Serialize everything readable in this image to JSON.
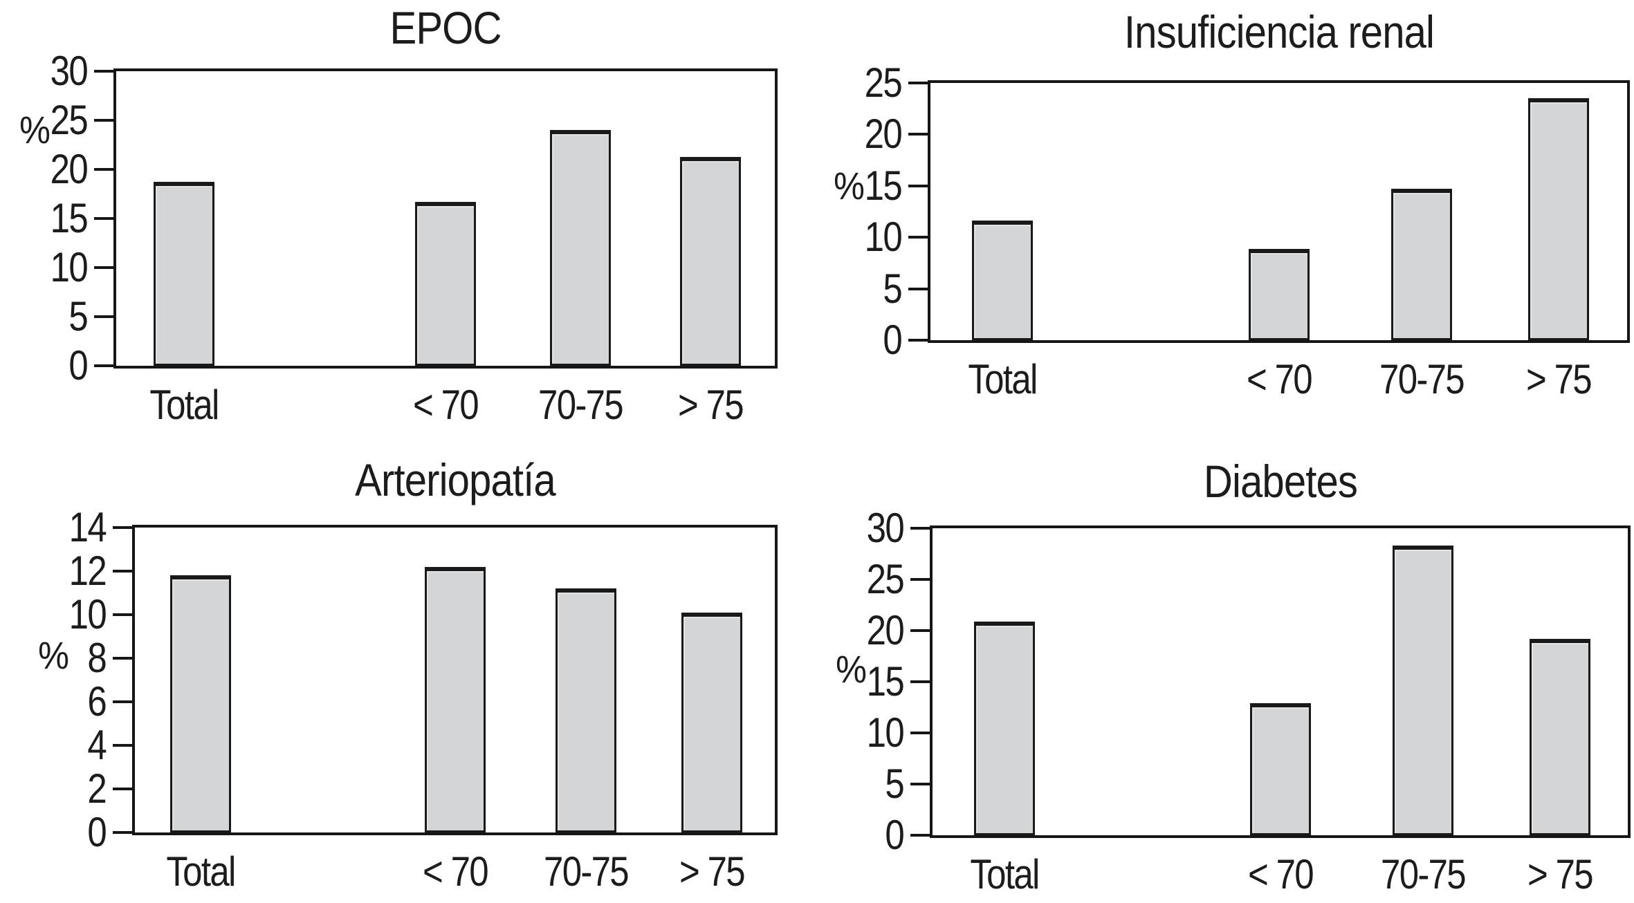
{
  "figure": {
    "background_color": "#ffffff",
    "text_color": "#1c1c1c",
    "bar_fill_color": "#d4d5d7",
    "bar_border_color": "#191919",
    "frame_border_color": "#161616",
    "ylabel": "%"
  },
  "chart_data": [
    {
      "type": "bar",
      "title": "EPOC",
      "ylabel": "%",
      "categories": [
        "Total",
        "< 70",
        "70-75",
        "> 75"
      ],
      "values": [
        18.7,
        16.7,
        24.0,
        21.3
      ],
      "ylim": [
        0,
        30
      ],
      "yticks": [
        0,
        5,
        10,
        15,
        20,
        25,
        30
      ],
      "grid": false,
      "legend": false,
      "framed": true
    },
    {
      "type": "bar",
      "title": "Insuficiencia renal",
      "ylabel": "%",
      "categories": [
        "Total",
        "< 70",
        "70-75",
        "> 75"
      ],
      "values": [
        11.6,
        8.9,
        14.7,
        23.5
      ],
      "ylim": [
        0,
        25
      ],
      "yticks": [
        0,
        5,
        10,
        15,
        20,
        25
      ],
      "grid": false,
      "legend": false,
      "framed": true
    },
    {
      "type": "bar",
      "title": "Arteriopatía",
      "ylabel": "%",
      "categories": [
        "Total",
        "< 70",
        "70-75",
        "> 75"
      ],
      "values": [
        11.8,
        12.2,
        11.2,
        10.1
      ],
      "ylim": [
        0,
        14
      ],
      "yticks": [
        0,
        2,
        4,
        6,
        8,
        10,
        12,
        14
      ],
      "grid": false,
      "legend": false,
      "framed": true
    },
    {
      "type": "bar",
      "title": "Diabetes",
      "ylabel": "%",
      "categories": [
        "Total",
        "< 70",
        "70-75",
        "> 75"
      ],
      "values": [
        20.9,
        12.9,
        28.3,
        19.2
      ],
      "ylim": [
        0,
        30
      ],
      "yticks": [
        0,
        5,
        10,
        15,
        20,
        25,
        30
      ],
      "grid": false,
      "legend": false,
      "framed": true
    }
  ]
}
